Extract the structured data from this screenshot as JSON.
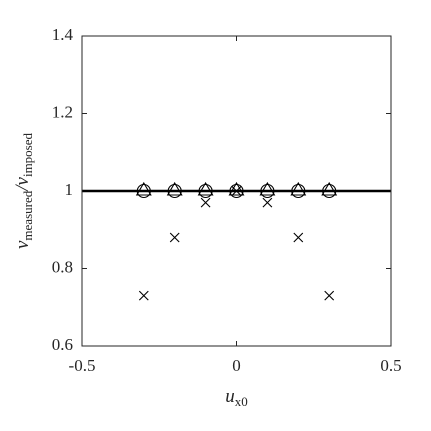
{
  "chart_data": {
    "type": "scatter",
    "xlabel": [
      {
        "main": "u",
        "sub": "x0"
      }
    ],
    "ylabel": [
      {
        "main": "ν",
        "sub": "measured"
      },
      {
        "main": "/"
      },
      {
        "main": "ν",
        "sub": "imposed"
      }
    ],
    "x": [
      -0.3,
      -0.2,
      -0.1,
      0,
      0.1,
      0.2,
      0.3
    ],
    "series": [
      {
        "marker": "circle",
        "color": "#000000",
        "values": [
          1,
          1,
          1,
          1,
          1,
          1,
          1
        ]
      },
      {
        "marker": "triangle",
        "color": "#000000",
        "values": [
          1,
          1,
          1,
          1,
          1,
          1,
          1
        ]
      },
      {
        "marker": "cross",
        "color": "#000000",
        "values": [
          0.73,
          0.88,
          0.97,
          1,
          0.97,
          0.88,
          0.73
        ]
      }
    ],
    "reference_line": 1,
    "xlim": [
      -0.5,
      0.5
    ],
    "xticks": [
      -0.5,
      0,
      0.5
    ],
    "ylim": [
      0.6,
      1.4
    ],
    "yticks": [
      0.6,
      0.8,
      1,
      1.2,
      1.4
    ],
    "grid": false
  }
}
